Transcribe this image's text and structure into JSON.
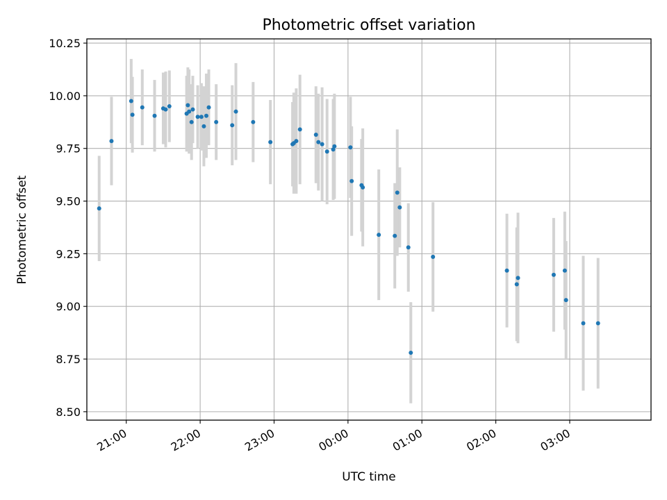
{
  "chart_data": {
    "type": "scatter",
    "title": "Photometric offset variation",
    "xlabel": "UTC time",
    "ylabel": "Photometric offset",
    "grid": true,
    "x_tick_labels": [
      "21:00",
      "22:00",
      "23:00",
      "00:00",
      "01:00",
      "02:00",
      "03:00"
    ],
    "y_tick_labels": [
      "8.50",
      "8.75",
      "9.00",
      "9.25",
      "9.50",
      "9.75",
      "10.00",
      "10.25"
    ],
    "x_ticks": [
      "21:00",
      "22:00",
      "23:00",
      "00:00",
      "01:00",
      "02:00",
      "03:00"
    ],
    "xlim": [
      "20:28",
      "04:06"
    ],
    "ylim": [
      8.46,
      10.27
    ],
    "colors": {
      "point": "#1f77b4",
      "errorbar": "#d3d3d3",
      "grid": "#b0b0b0"
    },
    "series": [
      {
        "x": [
          "20:38",
          "20:48",
          "21:04",
          "21:05",
          "21:13",
          "21:23",
          "21:30",
          "21:32",
          "21:35",
          "21:49",
          "21:50",
          "21:51",
          "21:53",
          "21:54",
          "21:58",
          "22:01",
          "22:03",
          "22:05",
          "22:07",
          "22:13",
          "22:26",
          "22:29",
          "22:43",
          "22:57",
          "23:15",
          "23:16",
          "23:18",
          "23:21",
          "23:34",
          "23:36",
          "23:39",
          "23:43",
          "23:48",
          "23:49",
          "24:02",
          "24:03",
          "24:11",
          "24:12",
          "24:25",
          "24:38",
          "24:40",
          "24:42",
          "24:49",
          "24:51",
          "25:09",
          "26:09",
          "26:17",
          "26:18",
          "26:47",
          "26:56",
          "26:57",
          "27:11",
          "27:23"
        ],
        "y": [
          9.465,
          9.785,
          9.975,
          9.91,
          9.945,
          9.905,
          9.94,
          9.935,
          9.95,
          9.915,
          9.955,
          9.925,
          9.875,
          9.935,
          9.9,
          9.9,
          9.855,
          9.905,
          9.945,
          9.875,
          9.86,
          9.925,
          9.875,
          9.78,
          9.77,
          9.775,
          9.785,
          9.84,
          9.815,
          9.78,
          9.77,
          9.735,
          9.745,
          9.76,
          9.755,
          9.595,
          9.575,
          9.565,
          9.34,
          9.335,
          9.54,
          9.47,
          9.28,
          8.78,
          9.235,
          9.17,
          9.105,
          9.135,
          9.15,
          9.17,
          9.03,
          8.92,
          8.92
        ],
        "yerr": [
          0.25,
          0.21,
          0.2,
          0.18,
          0.18,
          0.17,
          0.17,
          0.18,
          0.17,
          0.18,
          0.18,
          0.2,
          0.18,
          0.16,
          0.15,
          0.16,
          0.19,
          0.2,
          0.18,
          0.18,
          0.19,
          0.23,
          0.19,
          0.2,
          0.2,
          0.24,
          0.25,
          0.26,
          0.23,
          0.23,
          0.27,
          0.25,
          0.24,
          0.25,
          0.24,
          0.26,
          0.22,
          0.28,
          0.31,
          0.25,
          0.3,
          0.19,
          0.21,
          0.24,
          0.26,
          0.27,
          0.27,
          0.31,
          0.27,
          0.28,
          0.28,
          0.32,
          0.31
        ]
      }
    ]
  }
}
